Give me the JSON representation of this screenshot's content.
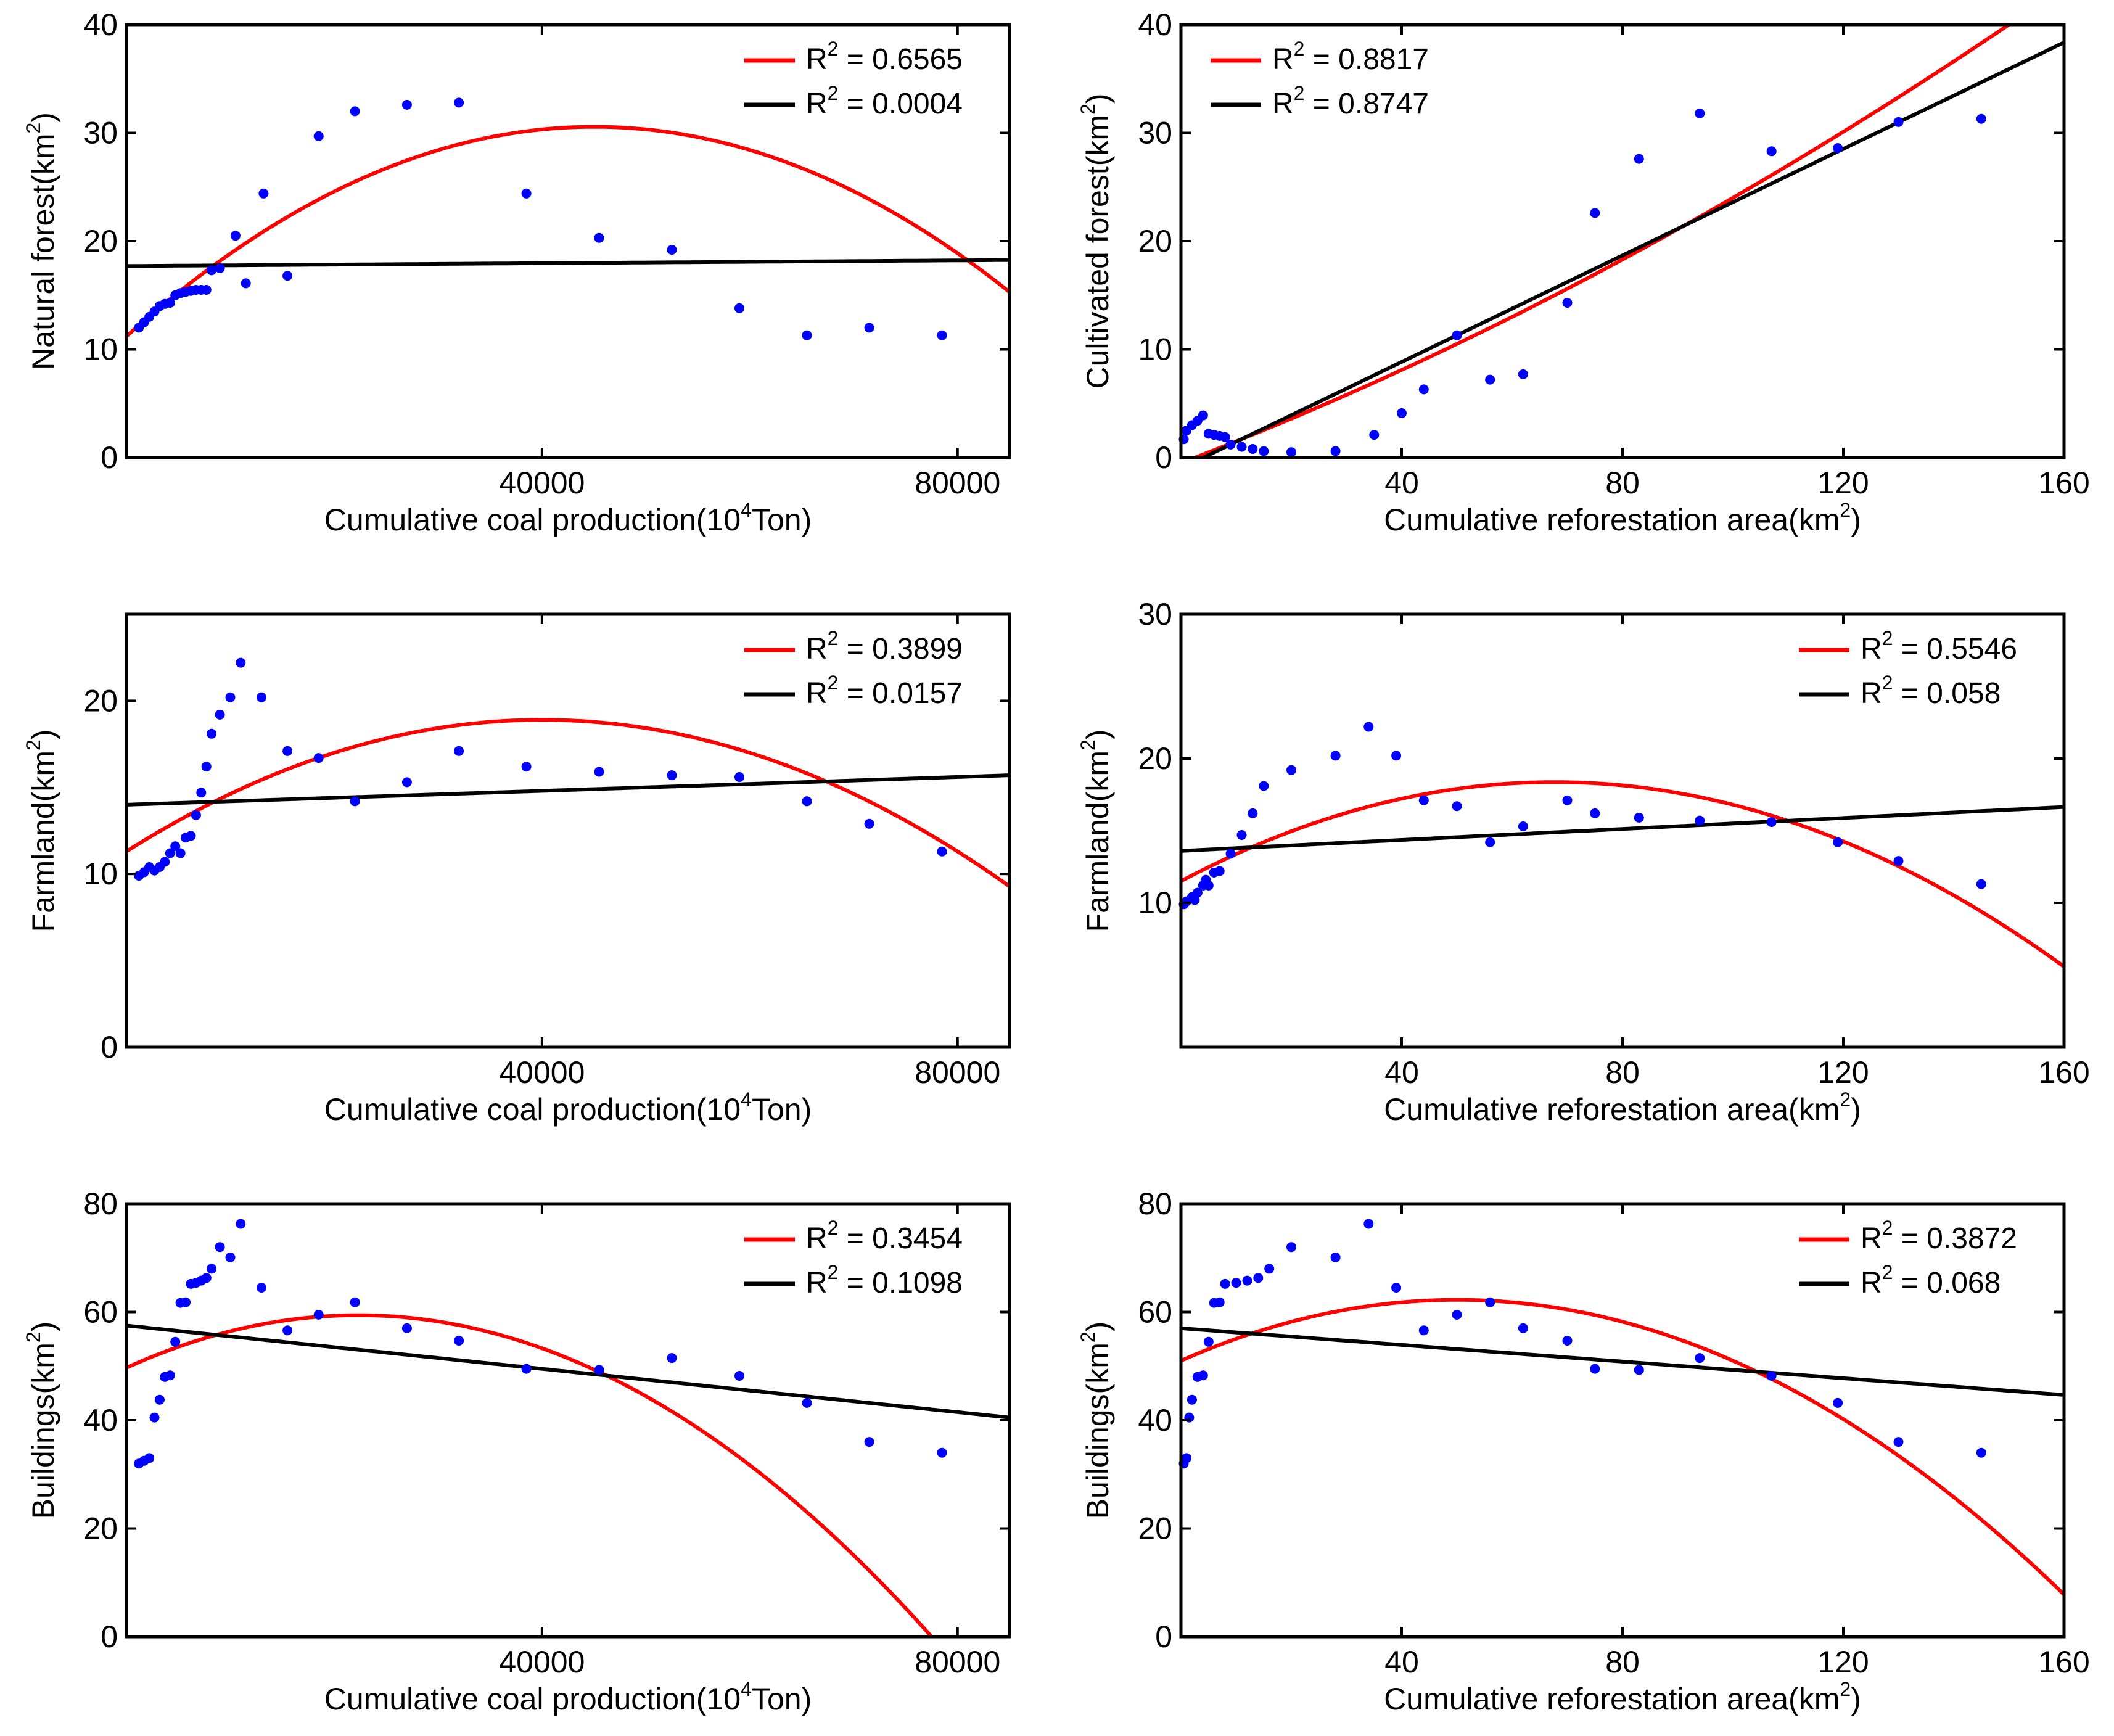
{
  "chart_data": [
    {
      "id": "natural-forest-vs-coal",
      "type": "scatter",
      "xlabel": "Cumulative coal production(10",
      "xlabel_sup": "4",
      "xlabel_tail": "Ton)",
      "ylabel": "Natural forest(km",
      "ylabel_sup": "2",
      "ylabel_tail": ")",
      "xlim": [
        0,
        85000
      ],
      "ylim": [
        0,
        40
      ],
      "xticks": [
        40000,
        80000
      ],
      "yticks": [
        0,
        10,
        20,
        30,
        40
      ],
      "legend_position": "top-right",
      "points": [
        [
          1200,
          12
        ],
        [
          1700,
          12.5
        ],
        [
          2200,
          13
        ],
        [
          2700,
          13.5
        ],
        [
          3200,
          14
        ],
        [
          3700,
          14.2
        ],
        [
          4200,
          14.3
        ],
        [
          4700,
          15
        ],
        [
          5200,
          15.2
        ],
        [
          5700,
          15.3
        ],
        [
          6200,
          15.4
        ],
        [
          6700,
          15.5
        ],
        [
          7200,
          15.5
        ],
        [
          7700,
          15.5
        ],
        [
          8200,
          17.3
        ],
        [
          9000,
          17.5
        ],
        [
          10500,
          20.5
        ],
        [
          11500,
          16.1
        ],
        [
          13200,
          24.4
        ],
        [
          15500,
          16.8
        ],
        [
          18500,
          29.7
        ],
        [
          22000,
          32
        ],
        [
          27000,
          32.6
        ],
        [
          32000,
          32.8
        ],
        [
          38500,
          24.4
        ],
        [
          45500,
          20.3
        ],
        [
          52500,
          19.2
        ],
        [
          59000,
          13.8
        ],
        [
          65500,
          11.3
        ],
        [
          71500,
          12
        ],
        [
          78500,
          11.3
        ]
      ],
      "fits": [
        {
          "name": "R",
          "sup": "2",
          "label": " = 0.6565",
          "color": "#ff0000",
          "kind": "quadratic",
          "coef": [
            11.2,
            0.00086,
            -9.55e-09
          ]
        },
        {
          "name": "R",
          "sup": "2",
          "label": " = 0.0004",
          "color": "#000000",
          "kind": "linear",
          "coef": [
            17.7,
            6.5e-06
          ]
        }
      ]
    },
    {
      "id": "cultivated-forest-vs-reforestation",
      "type": "scatter",
      "xlabel": "Cumulative reforestation area(km",
      "xlabel_sup": "2",
      "xlabel_tail": ")",
      "ylabel": "Cultivated forest(km",
      "ylabel_sup": "2",
      "ylabel_tail": ")",
      "xlim": [
        0,
        160
      ],
      "ylim": [
        0,
        40
      ],
      "xticks": [
        40,
        80,
        120,
        160
      ],
      "yticks": [
        0,
        10,
        20,
        30,
        40
      ],
      "legend_position": "top-left",
      "points": [
        [
          0.5,
          1.7
        ],
        [
          1,
          2.5
        ],
        [
          2,
          3
        ],
        [
          3,
          3.4
        ],
        [
          4,
          3.9
        ],
        [
          5,
          2.2
        ],
        [
          6,
          2.1
        ],
        [
          7,
          2
        ],
        [
          8,
          1.9
        ],
        [
          9,
          1.2
        ],
        [
          11,
          1
        ],
        [
          13,
          0.8
        ],
        [
          15,
          0.6
        ],
        [
          20,
          0.5
        ],
        [
          28,
          0.6
        ],
        [
          35,
          2.1
        ],
        [
          40,
          4.1
        ],
        [
          44,
          6.3
        ],
        [
          50,
          11.3
        ],
        [
          56,
          7.2
        ],
        [
          62,
          7.7
        ],
        [
          70,
          14.3
        ],
        [
          75,
          22.6
        ],
        [
          83,
          27.6
        ],
        [
          94,
          31.8
        ],
        [
          107,
          28.3
        ],
        [
          119,
          28.6
        ],
        [
          130,
          31
        ],
        [
          145,
          31.3
        ]
      ],
      "fits": [
        {
          "name": "R",
          "sup": "2",
          "label": " = 0.8817",
          "color": "#ff0000",
          "kind": "quadratic",
          "coef": [
            -0.5,
            0.195,
            0.0005
          ]
        },
        {
          "name": "R",
          "sup": "2",
          "label": " = 0.8747",
          "color": "#000000",
          "kind": "linear",
          "coef": [
            -1.0,
            0.246
          ]
        }
      ]
    },
    {
      "id": "farmland-vs-coal",
      "type": "scatter",
      "xlabel": "Cumulative coal production(10",
      "xlabel_sup": "4",
      "xlabel_tail": "Ton)",
      "ylabel": "Farmland(km",
      "ylabel_sup": "2",
      "ylabel_tail": ")",
      "xlim": [
        0,
        85000
      ],
      "ylim": [
        0,
        25
      ],
      "xticks": [
        40000,
        80000
      ],
      "yticks": [
        0,
        10,
        20
      ],
      "legend_position": "top-right",
      "points": [
        [
          1200,
          9.9
        ],
        [
          1700,
          10.1
        ],
        [
          2200,
          10.4
        ],
        [
          2700,
          10.2
        ],
        [
          3200,
          10.4
        ],
        [
          3700,
          10.7
        ],
        [
          4200,
          11.2
        ],
        [
          4700,
          11.6
        ],
        [
          5200,
          11.2
        ],
        [
          5700,
          12.1
        ],
        [
          6200,
          12.2
        ],
        [
          6700,
          13.4
        ],
        [
          7200,
          14.7
        ],
        [
          7700,
          16.2
        ],
        [
          8200,
          18.1
        ],
        [
          9000,
          19.2
        ],
        [
          10000,
          20.2
        ],
        [
          11000,
          22.2
        ],
        [
          13000,
          20.2
        ],
        [
          15500,
          17.1
        ],
        [
          18500,
          16.7
        ],
        [
          22000,
          14.2
        ],
        [
          27000,
          15.3
        ],
        [
          32000,
          17.1
        ],
        [
          38500,
          16.2
        ],
        [
          45500,
          15.9
        ],
        [
          52500,
          15.7
        ],
        [
          59000,
          15.6
        ],
        [
          65500,
          14.2
        ],
        [
          71500,
          12.9
        ],
        [
          78500,
          11.3
        ]
      ],
      "fits": [
        {
          "name": "R",
          "sup": "2",
          "label": " = 0.3899",
          "color": "#ff0000",
          "kind": "quadratic",
          "coef": [
            11.3,
            0.00038,
            -4.75e-09
          ]
        },
        {
          "name": "R",
          "sup": "2",
          "label": " = 0.0157",
          "color": "#000000",
          "kind": "linear",
          "coef": [
            14.0,
            2e-05
          ]
        }
      ]
    },
    {
      "id": "farmland-vs-reforestation",
      "type": "scatter",
      "xlabel": "Cumulative reforestation area(km",
      "xlabel_sup": "2",
      "xlabel_tail": ")",
      "ylabel": "Farmland(km",
      "ylabel_sup": "2",
      "ylabel_tail": ")",
      "xlim": [
        0,
        160
      ],
      "ylim": [
        0,
        30
      ],
      "xticks": [
        40,
        80,
        120,
        160
      ],
      "yticks": [
        10,
        20,
        30
      ],
      "legend_position": "top-right",
      "points": [
        [
          0.5,
          9.9
        ],
        [
          1,
          10.1
        ],
        [
          2,
          10.4
        ],
        [
          2.5,
          10.2
        ],
        [
          3,
          10.7
        ],
        [
          4,
          11.2
        ],
        [
          4.5,
          11.6
        ],
        [
          5,
          11.2
        ],
        [
          6,
          12.1
        ],
        [
          7,
          12.2
        ],
        [
          9,
          13.4
        ],
        [
          11,
          14.7
        ],
        [
          13,
          16.2
        ],
        [
          15,
          18.1
        ],
        [
          20,
          19.2
        ],
        [
          28,
          20.2
        ],
        [
          34,
          22.2
        ],
        [
          39,
          20.2
        ],
        [
          44,
          17.1
        ],
        [
          50,
          16.7
        ],
        [
          56,
          14.2
        ],
        [
          62,
          15.3
        ],
        [
          70,
          17.1
        ],
        [
          75,
          16.2
        ],
        [
          83,
          15.9
        ],
        [
          94,
          15.7
        ],
        [
          107,
          15.6
        ],
        [
          119,
          14.2
        ],
        [
          130,
          12.9
        ],
        [
          145,
          11.3
        ]
      ],
      "fits": [
        {
          "name": "R",
          "sup": "2",
          "label": " = 0.5546",
          "color": "#ff0000",
          "kind": "quadratic",
          "coef": [
            11.5,
            0.203,
            -0.0015
          ]
        },
        {
          "name": "R",
          "sup": "2",
          "label": " = 0.058",
          "color": "#000000",
          "kind": "linear",
          "coef": [
            13.6,
            0.019
          ]
        }
      ]
    },
    {
      "id": "buildings-vs-coal",
      "type": "scatter",
      "xlabel": "Cumulative coal production(10",
      "xlabel_sup": "4",
      "xlabel_tail": "Ton)",
      "ylabel": "Buildings(km",
      "ylabel_sup": "2",
      "ylabel_tail": ")",
      "xlim": [
        0,
        85000
      ],
      "ylim": [
        0,
        80
      ],
      "xticks": [
        40000,
        80000
      ],
      "yticks": [
        0,
        20,
        40,
        60,
        80
      ],
      "legend_position": "top-right",
      "points": [
        [
          1200,
          32
        ],
        [
          1700,
          32.5
        ],
        [
          2200,
          33
        ],
        [
          2700,
          40.5
        ],
        [
          3200,
          43.8
        ],
        [
          3700,
          48
        ],
        [
          4200,
          48.3
        ],
        [
          4700,
          54.5
        ],
        [
          5200,
          61.7
        ],
        [
          5700,
          61.8
        ],
        [
          6200,
          65.2
        ],
        [
          6700,
          65.4
        ],
        [
          7200,
          65.8
        ],
        [
          7700,
          66.3
        ],
        [
          8200,
          68
        ],
        [
          9000,
          72
        ],
        [
          10000,
          70.1
        ],
        [
          11000,
          76.3
        ],
        [
          13000,
          64.5
        ],
        [
          15500,
          56.6
        ],
        [
          18500,
          59.5
        ],
        [
          22000,
          61.8
        ],
        [
          27000,
          57
        ],
        [
          32000,
          54.7
        ],
        [
          38500,
          49.5
        ],
        [
          45500,
          49.3
        ],
        [
          52500,
          51.5
        ],
        [
          59000,
          48.2
        ],
        [
          65500,
          43.2
        ],
        [
          71500,
          36
        ],
        [
          78500,
          34
        ]
      ],
      "fits": [
        {
          "name": "R",
          "sup": "2",
          "label": " = 0.3454",
          "color": "#ff0000",
          "kind": "quadratic",
          "coef": [
            49.7,
            0.00087,
            -1.95e-08
          ]
        },
        {
          "name": "R",
          "sup": "2",
          "label": " = 0.1098",
          "color": "#000000",
          "kind": "linear",
          "coef": [
            57.5,
            -0.0002
          ]
        }
      ]
    },
    {
      "id": "buildings-vs-reforestation",
      "type": "scatter",
      "xlabel": "Cumulative reforestation area(km",
      "xlabel_sup": "2",
      "xlabel_tail": ")",
      "ylabel": "Buildings(km",
      "ylabel_sup": "2",
      "ylabel_tail": ")",
      "xlim": [
        0,
        160
      ],
      "ylim": [
        0,
        80
      ],
      "xticks": [
        40,
        80,
        120,
        160
      ],
      "yticks": [
        0,
        20,
        40,
        60,
        80
      ],
      "legend_position": "top-right",
      "points": [
        [
          0.5,
          32
        ],
        [
          1,
          33
        ],
        [
          1.5,
          40.5
        ],
        [
          2,
          43.8
        ],
        [
          3,
          48
        ],
        [
          4,
          48.3
        ],
        [
          5,
          54.5
        ],
        [
          6,
          61.7
        ],
        [
          7,
          61.8
        ],
        [
          8,
          65.2
        ],
        [
          10,
          65.4
        ],
        [
          12,
          65.8
        ],
        [
          14,
          66.3
        ],
        [
          16,
          68
        ],
        [
          20,
          72
        ],
        [
          28,
          70.1
        ],
        [
          34,
          76.3
        ],
        [
          39,
          64.5
        ],
        [
          44,
          56.6
        ],
        [
          50,
          59.5
        ],
        [
          56,
          61.8
        ],
        [
          62,
          57
        ],
        [
          70,
          54.7
        ],
        [
          75,
          49.5
        ],
        [
          83,
          49.3
        ],
        [
          94,
          51.5
        ],
        [
          107,
          48.2
        ],
        [
          119,
          43.2
        ],
        [
          130,
          36
        ],
        [
          145,
          34
        ]
      ],
      "fits": [
        {
          "name": "R",
          "sup": "2",
          "label": " = 0.3872",
          "color": "#ff0000",
          "kind": "quadratic",
          "coef": [
            51.0,
            0.45,
            -0.0045
          ]
        },
        {
          "name": "R",
          "sup": "2",
          "label": " = 0.068",
          "color": "#000000",
          "kind": "linear",
          "coef": [
            57.0,
            -0.077
          ]
        }
      ]
    }
  ],
  "colors": {
    "points": "#0000ff",
    "axis": "#000000"
  }
}
